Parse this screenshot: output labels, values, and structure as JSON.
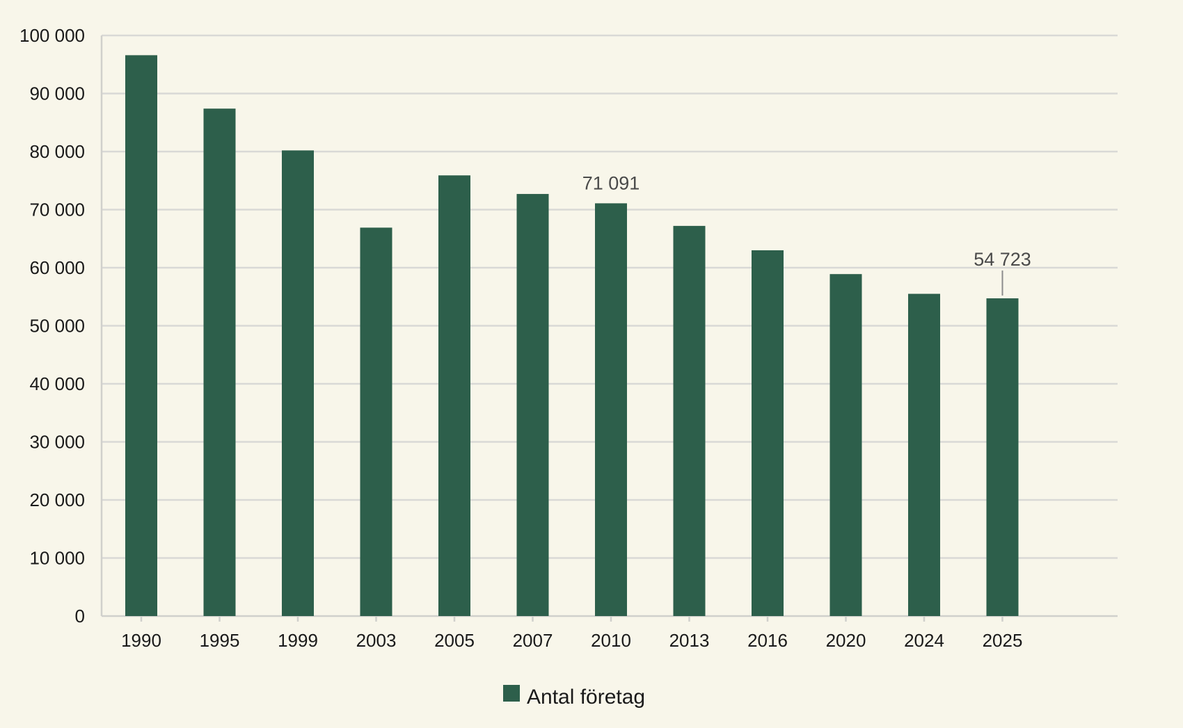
{
  "chart_data": {
    "type": "bar",
    "categories": [
      "1990",
      "1995",
      "1999",
      "2003",
      "2005",
      "2007",
      "2010",
      "2013",
      "2016",
      "2020",
      "2024",
      "2025"
    ],
    "series": [
      {
        "name": "Antal företag",
        "color": "#2d5f4b",
        "values": [
          96600,
          87400,
          80200,
          66900,
          75900,
          72700,
          71091,
          67200,
          63000,
          58900,
          55500,
          54723
        ]
      }
    ],
    "ylim": [
      0,
      100000
    ],
    "yticks": [
      0,
      10000,
      20000,
      30000,
      40000,
      50000,
      60000,
      70000,
      80000,
      90000,
      100000
    ],
    "ytick_labels": [
      "0",
      "10 000",
      "20 000",
      "30 000",
      "40 000",
      "50 000",
      "60 000",
      "70 000",
      "80 000",
      "90 000",
      "100 000"
    ],
    "data_labels": [
      {
        "category": "2010",
        "text": "71 091"
      },
      {
        "category": "2025",
        "text": "54 723",
        "leader_line": true
      }
    ],
    "grid": true,
    "legend": {
      "position": "bottom-center",
      "label": "Antal företag"
    },
    "title": "",
    "xlabel": "",
    "ylabel": ""
  }
}
